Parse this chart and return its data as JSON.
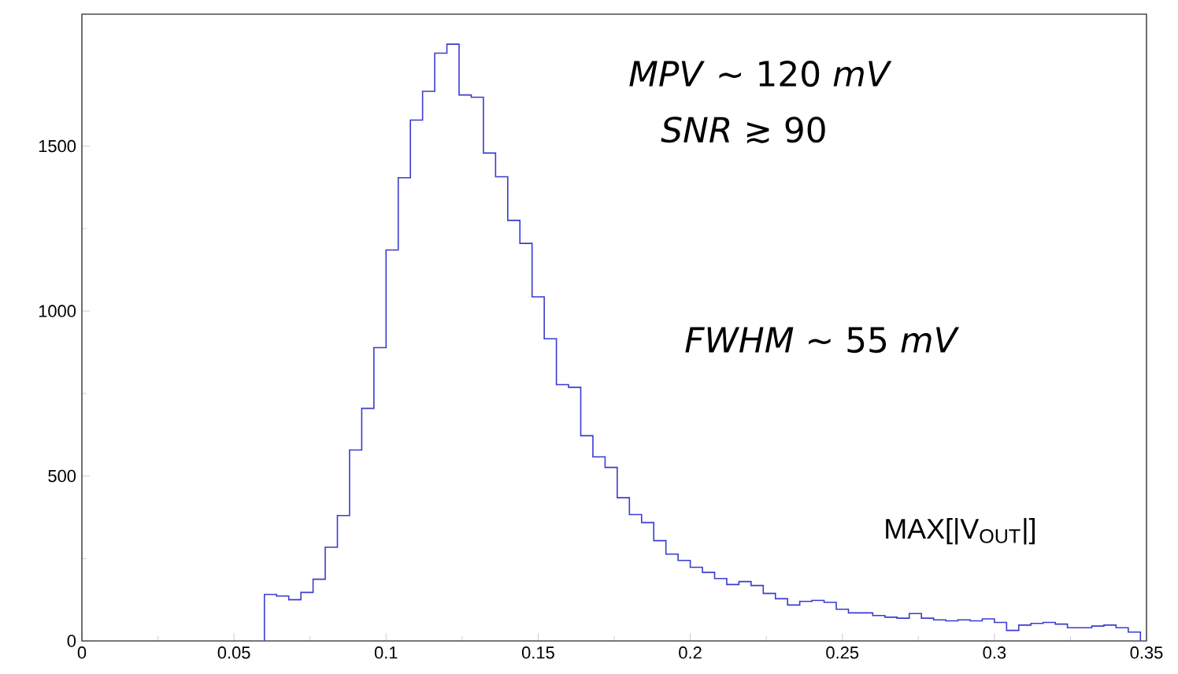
{
  "chart_data": {
    "type": "histogram",
    "bins": [
      0.06,
      0.064,
      0.068,
      0.072,
      0.076,
      0.08,
      0.084,
      0.088,
      0.092,
      0.096,
      0.1,
      0.104,
      0.108,
      0.112,
      0.116,
      0.12,
      0.124,
      0.128,
      0.132,
      0.136,
      0.14,
      0.144,
      0.148,
      0.152,
      0.156,
      0.16,
      0.164,
      0.168,
      0.172,
      0.176,
      0.18,
      0.184,
      0.188,
      0.192,
      0.196,
      0.2,
      0.204,
      0.208,
      0.212,
      0.216,
      0.22,
      0.224,
      0.228,
      0.232,
      0.236,
      0.24,
      0.244,
      0.248,
      0.252,
      0.256,
      0.26,
      0.264,
      0.268,
      0.272,
      0.276,
      0.28,
      0.284,
      0.288,
      0.292,
      0.296,
      0.3,
      0.304,
      0.308,
      0.312,
      0.316,
      0.32,
      0.324,
      0.328,
      0.332,
      0.336,
      0.34,
      0.344,
      0.348
    ],
    "values": [
      141,
      136,
      125,
      147,
      187,
      284,
      380,
      579,
      705,
      889,
      1185,
      1404,
      1579,
      1666,
      1782,
      1809,
      1655,
      1648,
      1479,
      1407,
      1275,
      1205,
      1043,
      916,
      777,
      769,
      622,
      558,
      526,
      434,
      383,
      359,
      304,
      263,
      244,
      223,
      208,
      189,
      171,
      180,
      168,
      144,
      128,
      109,
      120,
      123,
      117,
      96,
      85,
      85,
      77,
      72,
      69,
      83,
      69,
      64,
      61,
      64,
      61,
      67,
      56,
      32,
      48,
      53,
      56,
      51,
      40,
      40,
      45,
      48,
      40,
      27
    ],
    "color": "#3b3bd0",
    "xlim": [
      0,
      0.35
    ],
    "ylim": [
      0,
      1900
    ],
    "xticks": [
      0,
      0.05,
      0.1,
      0.15,
      0.2,
      0.25,
      0.3,
      0.35
    ],
    "yticks": [
      0,
      500,
      1000,
      1500
    ],
    "xlabel": "MAX[|V$_{OUT}$|]",
    "annotations": [
      "*MPV* ~ 120 *mV*",
      "*SNR* ≳ 90",
      "*FWHM* ~ 55 *mV*"
    ]
  }
}
